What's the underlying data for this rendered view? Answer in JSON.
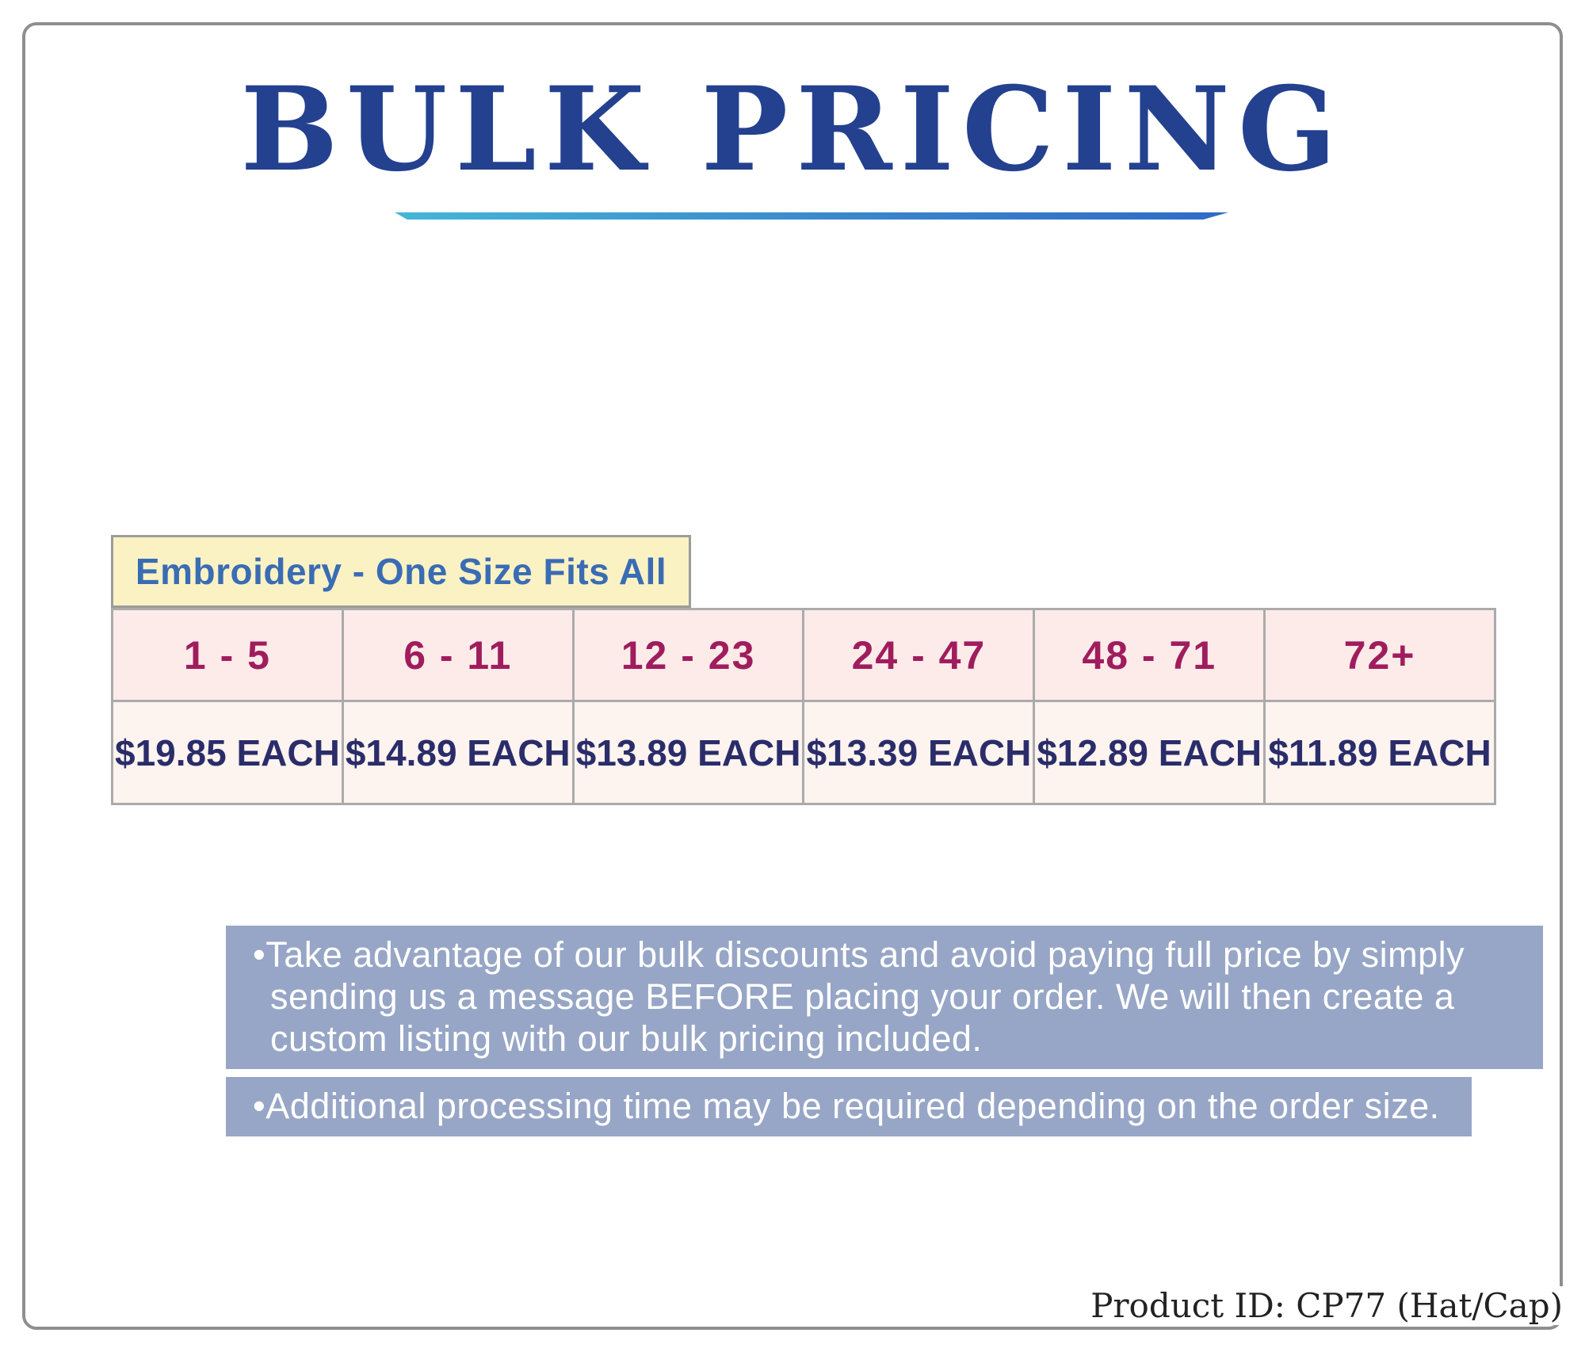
{
  "header": {
    "title": "BULK PRICING"
  },
  "pricing": {
    "header_label": "Embroidery - One Size Fits All",
    "tiers": [
      {
        "range": "1 - 5",
        "price": "$19.85 EACH"
      },
      {
        "range": "6 - 11",
        "price": "$14.89 EACH"
      },
      {
        "range": "12 - 23",
        "price": "$13.89 EACH"
      },
      {
        "range": "24 - 47",
        "price": "$13.39 EACH"
      },
      {
        "range": "48 - 71",
        "price": "$12.89 EACH"
      },
      {
        "range": "72+",
        "price": "$11.89 EACH"
      }
    ]
  },
  "notes": [
    "•Take advantage of our bulk discounts and avoid paying full price by simply sending us a message BEFORE placing your order. We will then create a custom listing with our bulk pricing included.",
    "•Additional processing time may be required depending on the order size."
  ],
  "footer": {
    "product_id": "Product ID: CP77 (Hat/Cap)"
  },
  "colors": {
    "title_blue": "#24418f",
    "underline_teal": "#45b6d8",
    "underline_blue": "#2e6bc8",
    "table_header_blue": "#3a6cb4",
    "table_header_bg": "#fbf2c4",
    "tier_magenta": "#a01d5d",
    "tier_bg": "#fcebe9",
    "price_navy": "#2a2d69",
    "price_bg": "#fdf3ef",
    "note_bg": "#97a6c6",
    "border_gray": "#8f8f8f"
  }
}
